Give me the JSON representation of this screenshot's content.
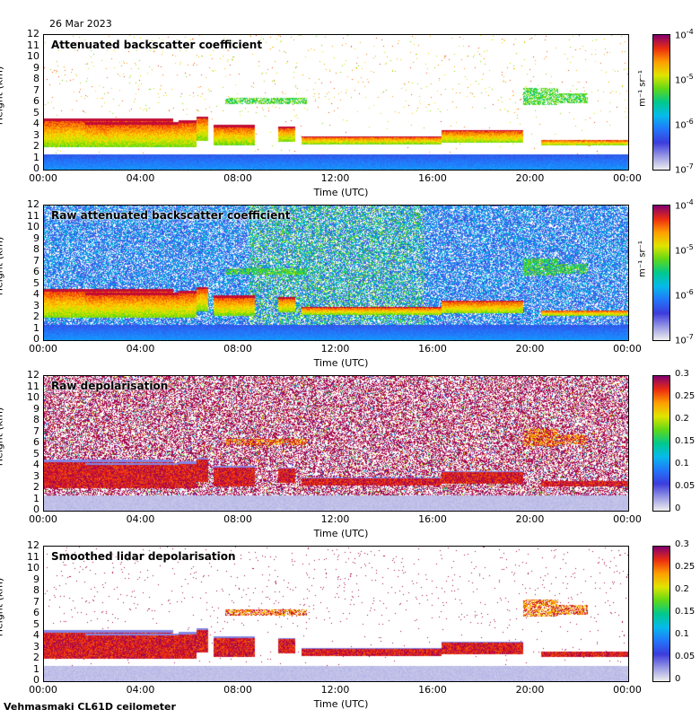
{
  "date": "26 Mar 2023",
  "footer": "Vehmasmaki CL61D ceilometer",
  "chart_data": [
    {
      "type": "heatmap",
      "title": "Attenuated backscatter coefficient",
      "ylabel": "Height (km)",
      "xlabel": "Time (UTC)",
      "ylim": [
        0,
        12
      ],
      "x_ticks": [
        "00:00",
        "04:00",
        "08:00",
        "12:00",
        "16:00",
        "20:00",
        "00:00"
      ],
      "y_ticks": [
        "0",
        "1",
        "2",
        "3",
        "4",
        "5",
        "6",
        "7",
        "8",
        "9",
        "10",
        "11",
        "12"
      ],
      "colorbar": {
        "scale": "log",
        "range": [
          1e-07,
          0.0001
        ],
        "ticks": [
          {
            "b": "10",
            "e": "-4"
          },
          {
            "b": "10",
            "e": "-5"
          },
          {
            "b": "10",
            "e": "-6"
          },
          {
            "b": "10",
            "e": "-7"
          }
        ],
        "unit": "m⁻¹ sr⁻¹"
      },
      "noise": "low",
      "mode": "bsc"
    },
    {
      "type": "heatmap",
      "title": "Raw attenuated backscatter coefficient",
      "ylabel": "Height (km)",
      "xlabel": "Time (UTC)",
      "ylim": [
        0,
        12
      ],
      "x_ticks": [
        "00:00",
        "04:00",
        "08:00",
        "12:00",
        "16:00",
        "20:00",
        "00:00"
      ],
      "y_ticks": [
        "0",
        "1",
        "2",
        "3",
        "4",
        "5",
        "6",
        "7",
        "8",
        "9",
        "10",
        "11",
        "12"
      ],
      "colorbar": {
        "scale": "log",
        "range": [
          1e-07,
          0.0001
        ],
        "ticks": [
          {
            "b": "10",
            "e": "-4"
          },
          {
            "b": "10",
            "e": "-5"
          },
          {
            "b": "10",
            "e": "-6"
          },
          {
            "b": "10",
            "e": "-7"
          }
        ],
        "unit": "m⁻¹ sr⁻¹"
      },
      "noise": "high",
      "mode": "bsc"
    },
    {
      "type": "heatmap",
      "title": "Raw depolarisation",
      "ylabel": "Height (km)",
      "xlabel": "Time (UTC)",
      "ylim": [
        0,
        12
      ],
      "x_ticks": [
        "00:00",
        "04:00",
        "08:00",
        "12:00",
        "16:00",
        "20:00",
        "00:00"
      ],
      "y_ticks": [
        "0",
        "1",
        "2",
        "3",
        "4",
        "5",
        "6",
        "7",
        "8",
        "9",
        "10",
        "11",
        "12"
      ],
      "colorbar": {
        "scale": "linear",
        "range": [
          0,
          0.3
        ],
        "ticks": [
          "0.3",
          "0.25",
          "0.2",
          "0.15",
          "0.1",
          "0.05",
          "0"
        ]
      },
      "noise": "high",
      "mode": "depol"
    },
    {
      "type": "heatmap",
      "title": "Smoothed lidar depolarisation",
      "ylabel": "Height (km)",
      "xlabel": "Time (UTC)",
      "ylim": [
        0,
        12
      ],
      "x_ticks": [
        "00:00",
        "04:00",
        "08:00",
        "12:00",
        "16:00",
        "20:00",
        "00:00"
      ],
      "y_ticks": [
        "0",
        "1",
        "2",
        "3",
        "4",
        "5",
        "6",
        "7",
        "8",
        "9",
        "10",
        "11",
        "12"
      ],
      "colorbar": {
        "scale": "linear",
        "range": [
          0,
          0.3
        ],
        "ticks": [
          "0.3",
          "0.25",
          "0.2",
          "0.15",
          "0.1",
          "0.05",
          "0"
        ]
      },
      "noise": "low",
      "mode": "depol"
    }
  ]
}
